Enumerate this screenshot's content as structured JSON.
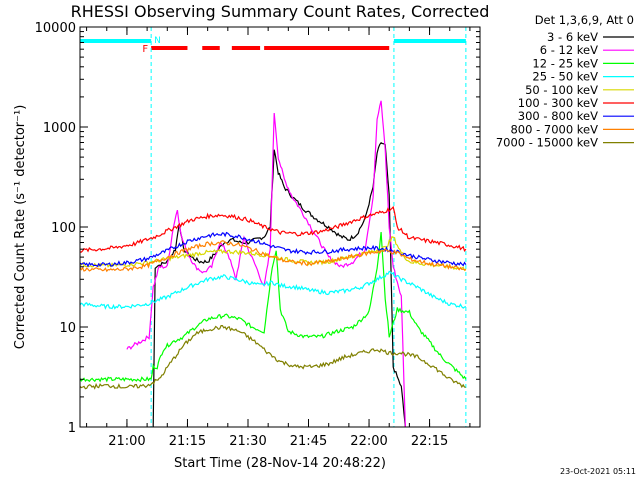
{
  "chart_data": {
    "type": "line",
    "title": "RHESSI Observing Summary Count Rates, Corrected",
    "xlabel": "Start Time (28-Nov-14 20:48:22)",
    "ylabel": "Corrected Count Rate (s⁻¹ detector⁻¹)",
    "yscale": "log",
    "ylim": [
      1,
      10000
    ],
    "xlim": [
      "20:48:22",
      "22:27:30"
    ],
    "x_ticks": [
      "21:00",
      "21:15",
      "21:30",
      "21:45",
      "22:00",
      "22:15"
    ],
    "y_ticks": [
      "1",
      "10",
      "100",
      "1000",
      "10000"
    ],
    "legend_title": "Det 1,3,6,9, Att 0",
    "legend_position": "right",
    "footer": "23-Oct-2021 05:11",
    "flags": {
      "F_label": "F",
      "N_label": "N",
      "F_color": "#ff0000",
      "N_color": "#00ffff",
      "F_intervals": [
        [
          "21:06:00",
          "21:15:00"
        ],
        [
          "21:18:40",
          "21:23:00"
        ],
        [
          "21:26:00",
          "21:33:00"
        ],
        [
          "21:34:00",
          "22:05:00"
        ]
      ],
      "N_intervals": [
        [
          "20:48:22",
          "21:06:00"
        ],
        [
          "22:06:10",
          "22:24:00"
        ]
      ],
      "night_lines": [
        "21:06:00",
        "22:06:10",
        "22:24:00"
      ]
    },
    "series": [
      {
        "name": "3 - 6 keV",
        "color": "#000000",
        "points": [
          [
            "21:06:30",
            1
          ],
          [
            "21:07:00",
            40
          ],
          [
            "21:10:00",
            45
          ],
          [
            "21:12:00",
            60
          ],
          [
            "21:13:00",
            110
          ],
          [
            "21:14:00",
            60
          ],
          [
            "21:16:00",
            50
          ],
          [
            "21:18:00",
            45
          ],
          [
            "21:20:00",
            45
          ],
          [
            "21:22:00",
            55
          ],
          [
            "21:24:00",
            70
          ],
          [
            "21:26:00",
            75
          ],
          [
            "21:28:00",
            70
          ],
          [
            "21:30:00",
            70
          ],
          [
            "21:32:00",
            75
          ],
          [
            "21:34:00",
            80
          ],
          [
            "21:35:30",
            100
          ],
          [
            "21:36:30",
            600
          ],
          [
            "21:37:30",
            350
          ],
          [
            "21:39:00",
            250
          ],
          [
            "21:41:00",
            200
          ],
          [
            "21:44:00",
            150
          ],
          [
            "21:47:00",
            120
          ],
          [
            "21:50:00",
            100
          ],
          [
            "21:53:00",
            80
          ],
          [
            "21:55:00",
            75
          ],
          [
            "21:57:00",
            85
          ],
          [
            "21:59:00",
            120
          ],
          [
            "22:01:00",
            250
          ],
          [
            "22:02:00",
            550
          ],
          [
            "22:03:00",
            700
          ],
          [
            "22:04:00",
            650
          ],
          [
            "22:05:00",
            200
          ],
          [
            "22:06:00",
            4
          ],
          [
            "22:08:00",
            2.5
          ],
          [
            "22:09:00",
            1
          ]
        ]
      },
      {
        "name": "6 - 12 keV",
        "color": "#ff00ff",
        "points": [
          [
            "21:00:00",
            6
          ],
          [
            "21:05:30",
            8
          ],
          [
            "21:06:30",
            25
          ],
          [
            "21:08:00",
            40
          ],
          [
            "21:10:00",
            40
          ],
          [
            "21:11:30",
            100
          ],
          [
            "21:12:30",
            150
          ],
          [
            "21:13:30",
            80
          ],
          [
            "21:15:00",
            55
          ],
          [
            "21:17:00",
            40
          ],
          [
            "21:19:00",
            35
          ],
          [
            "21:21:00",
            40
          ],
          [
            "21:23:00",
            70
          ],
          [
            "21:25:00",
            55
          ],
          [
            "21:27:00",
            30
          ],
          [
            "21:29:00",
            80
          ],
          [
            "21:30:00",
            60
          ],
          [
            "21:32:00",
            40
          ],
          [
            "21:34:00",
            25
          ],
          [
            "21:35:30",
            60
          ],
          [
            "21:36:30",
            1400
          ],
          [
            "21:37:30",
            500
          ],
          [
            "21:39:00",
            300
          ],
          [
            "21:41:00",
            200
          ],
          [
            "21:43:00",
            150
          ],
          [
            "21:45:00",
            110
          ],
          [
            "21:47:00",
            80
          ],
          [
            "21:50:00",
            50
          ],
          [
            "21:53:00",
            40
          ],
          [
            "21:56:00",
            45
          ],
          [
            "21:59:00",
            60
          ],
          [
            "22:01:00",
            200
          ],
          [
            "22:02:00",
            1200
          ],
          [
            "22:03:00",
            1800
          ],
          [
            "22:04:00",
            600
          ],
          [
            "22:05:00",
            100
          ],
          [
            "22:06:00",
            40
          ],
          [
            "22:08:00",
            20
          ],
          [
            "22:09:00",
            1
          ]
        ]
      },
      {
        "name": "12 - 25 keV",
        "color": "#00ff00",
        "points": [
          [
            "20:48:22",
            3
          ],
          [
            "21:06:00",
            3
          ],
          [
            "21:06:30",
            4
          ],
          [
            "21:07:30",
            4
          ],
          [
            "21:09:00",
            6
          ],
          [
            "21:11:00",
            7
          ],
          [
            "21:14:00",
            8
          ],
          [
            "21:17:00",
            10
          ],
          [
            "21:20:00",
            12
          ],
          [
            "21:24:00",
            13
          ],
          [
            "21:28:00",
            12
          ],
          [
            "21:31:00",
            10
          ],
          [
            "21:34:00",
            9
          ],
          [
            "21:36:00",
            40
          ],
          [
            "21:37:00",
            60
          ],
          [
            "21:38:00",
            15
          ],
          [
            "21:40:00",
            9
          ],
          [
            "21:44:00",
            8
          ],
          [
            "21:48:00",
            8
          ],
          [
            "21:52:00",
            9
          ],
          [
            "21:56:00",
            10
          ],
          [
            "22:00:00",
            14
          ],
          [
            "22:02:00",
            40
          ],
          [
            "22:03:00",
            90
          ],
          [
            "22:04:00",
            20
          ],
          [
            "22:05:00",
            8
          ],
          [
            "22:07:00",
            15
          ],
          [
            "22:10:00",
            14
          ],
          [
            "22:12:00",
            10
          ],
          [
            "22:18:00",
            5
          ],
          [
            "22:24:00",
            3
          ]
        ]
      },
      {
        "name": "25 - 50 keV",
        "color": "#00ffff",
        "points": [
          [
            "20:48:22",
            17
          ],
          [
            "20:55:00",
            16
          ],
          [
            "21:00:00",
            16
          ],
          [
            "21:05:00",
            17
          ],
          [
            "21:10:00",
            20
          ],
          [
            "21:15:00",
            25
          ],
          [
            "21:20:00",
            30
          ],
          [
            "21:24:00",
            32
          ],
          [
            "21:27:00",
            30
          ],
          [
            "21:30:00",
            28
          ],
          [
            "21:33:00",
            26
          ],
          [
            "21:36:00",
            28
          ],
          [
            "21:38:00",
            26
          ],
          [
            "21:42:00",
            25
          ],
          [
            "21:46:00",
            23
          ],
          [
            "21:50:00",
            22
          ],
          [
            "21:54:00",
            23
          ],
          [
            "21:58:00",
            25
          ],
          [
            "22:02:00",
            30
          ],
          [
            "22:05:00",
            35
          ],
          [
            "22:08:00",
            30
          ],
          [
            "22:12:00",
            25
          ],
          [
            "22:16:00",
            20
          ],
          [
            "22:20:00",
            17
          ],
          [
            "22:24:00",
            16
          ]
        ]
      },
      {
        "name": "50 - 100 keV",
        "color": "#d8d800",
        "points": [
          [
            "20:48:22",
            42
          ],
          [
            "20:55:00",
            41
          ],
          [
            "21:00:00",
            42
          ],
          [
            "21:05:00",
            44
          ],
          [
            "21:10:00",
            48
          ],
          [
            "21:15:00",
            52
          ],
          [
            "21:20:00",
            56
          ],
          [
            "21:25:00",
            57
          ],
          [
            "21:30:00",
            55
          ],
          [
            "21:35:00",
            52
          ],
          [
            "21:40:00",
            47
          ],
          [
            "21:45:00",
            44
          ],
          [
            "21:50:00",
            45
          ],
          [
            "21:55:00",
            50
          ],
          [
            "22:00:00",
            56
          ],
          [
            "22:04:00",
            62
          ],
          [
            "22:06:00",
            80
          ],
          [
            "22:08:00",
            55
          ],
          [
            "22:10:00",
            45
          ],
          [
            "22:15:00",
            42
          ],
          [
            "22:20:00",
            40
          ],
          [
            "22:24:00",
            38
          ]
        ]
      },
      {
        "name": "100 - 300 keV",
        "color": "#ff0000",
        "points": [
          [
            "20:48:22",
            58
          ],
          [
            "20:53:00",
            60
          ],
          [
            "20:57:00",
            62
          ],
          [
            "21:02:00",
            68
          ],
          [
            "21:07:00",
            80
          ],
          [
            "21:12:00",
            100
          ],
          [
            "21:16:00",
            118
          ],
          [
            "21:20:00",
            128
          ],
          [
            "21:23:00",
            132
          ],
          [
            "21:26:00",
            128
          ],
          [
            "21:30:00",
            118
          ],
          [
            "21:34:00",
            100
          ],
          [
            "21:38:00",
            88
          ],
          [
            "21:43:00",
            85
          ],
          [
            "21:48:00",
            90
          ],
          [
            "21:52:00",
            100
          ],
          [
            "21:56:00",
            115
          ],
          [
            "22:00:00",
            130
          ],
          [
            "22:03:00",
            140
          ],
          [
            "22:06:00",
            155
          ],
          [
            "22:07:00",
            100
          ],
          [
            "22:10:00",
            78
          ],
          [
            "22:15:00",
            72
          ],
          [
            "22:20:00",
            66
          ],
          [
            "22:24:00",
            60
          ]
        ]
      },
      {
        "name": "300 - 800 keV",
        "color": "#0000ff",
        "points": [
          [
            "20:48:22",
            42
          ],
          [
            "20:55:00",
            42
          ],
          [
            "21:00:00",
            44
          ],
          [
            "21:05:00",
            48
          ],
          [
            "21:10:00",
            58
          ],
          [
            "21:15:00",
            72
          ],
          [
            "21:20:00",
            82
          ],
          [
            "21:24:00",
            85
          ],
          [
            "21:28:00",
            80
          ],
          [
            "21:32:00",
            72
          ],
          [
            "21:36:00",
            64
          ],
          [
            "21:40:00",
            58
          ],
          [
            "21:45:00",
            56
          ],
          [
            "21:50:00",
            57
          ],
          [
            "21:55:00",
            60
          ],
          [
            "22:00:00",
            62
          ],
          [
            "22:04:00",
            60
          ],
          [
            "22:06:00",
            58
          ],
          [
            "22:10:00",
            52
          ],
          [
            "22:15:00",
            47
          ],
          [
            "22:20:00",
            44
          ],
          [
            "22:24:00",
            42
          ]
        ]
      },
      {
        "name": "800 - 7000 keV",
        "color": "#ff8000",
        "points": [
          [
            "20:48:22",
            38
          ],
          [
            "20:55:00",
            37
          ],
          [
            "21:00:00",
            38
          ],
          [
            "21:05:00",
            41
          ],
          [
            "21:10:00",
            50
          ],
          [
            "21:15:00",
            60
          ],
          [
            "21:20:00",
            68
          ],
          [
            "21:24:00",
            70
          ],
          [
            "21:28:00",
            66
          ],
          [
            "21:32:00",
            58
          ],
          [
            "21:36:00",
            50
          ],
          [
            "21:40:00",
            45
          ],
          [
            "21:45:00",
            43
          ],
          [
            "21:50:00",
            45
          ],
          [
            "21:55:00",
            50
          ],
          [
            "22:00:00",
            55
          ],
          [
            "22:04:00",
            58
          ],
          [
            "22:07:00",
            55
          ],
          [
            "22:10:00",
            48
          ],
          [
            "22:15:00",
            43
          ],
          [
            "22:20:00",
            40
          ],
          [
            "22:24:00",
            37
          ]
        ]
      },
      {
        "name": "7000 - 15000 keV",
        "color": "#808000",
        "points": [
          [
            "20:48:22",
            2.5
          ],
          [
            "20:55:00",
            2.6
          ],
          [
            "21:00:00",
            2.5
          ],
          [
            "21:05:00",
            2.6
          ],
          [
            "21:08:00",
            3
          ],
          [
            "21:11:00",
            4.5
          ],
          [
            "21:14:00",
            6.5
          ],
          [
            "21:17:00",
            8.5
          ],
          [
            "21:20:00",
            9.5
          ],
          [
            "21:24:00",
            10
          ],
          [
            "21:28:00",
            9
          ],
          [
            "21:32:00",
            7
          ],
          [
            "21:35:00",
            5.5
          ],
          [
            "21:38:00",
            4.5
          ],
          [
            "21:42:00",
            4
          ],
          [
            "21:46:00",
            4
          ],
          [
            "21:50:00",
            4.3
          ],
          [
            "21:54:00",
            5
          ],
          [
            "21:58:00",
            5.5
          ],
          [
            "22:02:00",
            6
          ],
          [
            "22:05:00",
            5.5
          ],
          [
            "22:08:00",
            5.5
          ],
          [
            "22:12:00",
            5
          ],
          [
            "22:16:00",
            4
          ],
          [
            "22:20:00",
            3
          ],
          [
            "22:24:00",
            2.5
          ]
        ]
      }
    ]
  }
}
